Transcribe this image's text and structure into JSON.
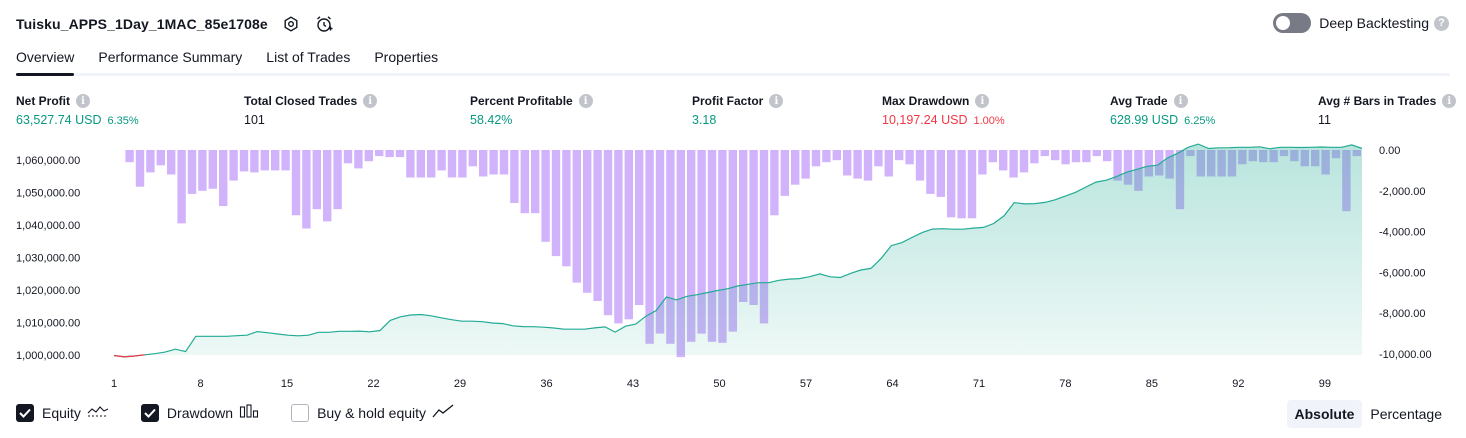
{
  "header": {
    "strategy_name": "Tuisku_APPS_1Day_1MAC_85e1708e",
    "deep_backtesting_label": "Deep Backtesting"
  },
  "tabs": [
    {
      "label": "Overview",
      "active": true
    },
    {
      "label": "Performance Summary",
      "active": false
    },
    {
      "label": "List of Trades",
      "active": false
    },
    {
      "label": "Properties",
      "active": false
    }
  ],
  "metrics": {
    "net_profit": {
      "label": "Net Profit",
      "value": "63,527.74 USD",
      "pct": "6.35%"
    },
    "total_closed_trades": {
      "label": "Total Closed Trades",
      "value": "101"
    },
    "percent_profitable": {
      "label": "Percent Profitable",
      "value": "58.42%"
    },
    "profit_factor": {
      "label": "Profit Factor",
      "value": "3.18"
    },
    "max_drawdown": {
      "label": "Max Drawdown",
      "value": "10,197.24 USD",
      "pct": "1.00%"
    },
    "avg_trade": {
      "label": "Avg Trade",
      "value": "628.99 USD",
      "pct": "6.25%"
    },
    "avg_bars": {
      "label": "Avg # Bars in Trades",
      "value": "11"
    }
  },
  "legend": {
    "equity": {
      "label": "Equity",
      "checked": true
    },
    "drawdown": {
      "label": "Drawdown",
      "checked": true
    },
    "buy_hold": {
      "label": "Buy & hold equity",
      "checked": false
    }
  },
  "modes": {
    "absolute": "Absolute",
    "percentage": "Percentage",
    "active": "absolute"
  },
  "colors": {
    "equity_line": "#22ab94",
    "equity_fill": "#22ab94",
    "equity_negative": "#f23645",
    "drawdown_bar": "#d1b3fb",
    "drawdown_bar_overlap": "#b39ddb",
    "positive": "#089981",
    "negative": "#f23645"
  },
  "chart_data": {
    "type": "area",
    "x_ticks": [
      1,
      8,
      15,
      22,
      29,
      36,
      43,
      50,
      57,
      64,
      71,
      78,
      85,
      92,
      99
    ],
    "x_range": [
      1,
      102
    ],
    "left_axis": {
      "ticks": [
        "1,060,000.00",
        "1,050,000.00",
        "1,040,000.00",
        "1,030,000.00",
        "1,020,000.00",
        "1,010,000.00",
        "1,000,000.00"
      ],
      "range": [
        1000000,
        1060000
      ]
    },
    "right_axis": {
      "ticks": [
        "0.00",
        "-2,000.00",
        "-4,000.00",
        "-6,000.00",
        "-8,000.00",
        "-10,000.00"
      ],
      "range": [
        -10000,
        0
      ]
    },
    "series": [
      {
        "name": "Equity",
        "values": [
          999840,
          999400,
          999700,
          1000050,
          1000400,
          1000900,
          1001800,
          1001050,
          1005750,
          1005750,
          1005750,
          1005750,
          1005950,
          1006100,
          1007200,
          1006850,
          1006450,
          1006100,
          1005900,
          1006100,
          1007000,
          1007000,
          1007300,
          1007300,
          1007350,
          1007150,
          1007550,
          1010650,
          1011750,
          1012300,
          1012450,
          1012050,
          1011450,
          1010850,
          1010400,
          1010400,
          1010250,
          1009850,
          1009650,
          1009000,
          1008750,
          1008700,
          1008550,
          1008300,
          1007950,
          1007950,
          1007950,
          1008350,
          1008650,
          1007050,
          1008850,
          1009500,
          1011950,
          1013700,
          1017850,
          1016950,
          1018050,
          1018550,
          1019200,
          1019850,
          1020400,
          1021250,
          1021750,
          1022250,
          1022250,
          1023000,
          1023350,
          1023500,
          1024100,
          1024950,
          1024050,
          1023850,
          1025100,
          1026150,
          1026650,
          1029750,
          1033650,
          1034550,
          1036150,
          1037650,
          1038750,
          1038850,
          1038700,
          1038700,
          1039050,
          1039250,
          1040450,
          1042800,
          1046900,
          1046500,
          1046600,
          1046950,
          1047750,
          1048900,
          1050050,
          1051650,
          1053200,
          1053800,
          1054900,
          1056250,
          1057150,
          1058050,
          1058400,
          1060650,
          1062100,
          1063900,
          1064900,
          1063550,
          1063750,
          1063800,
          1063900,
          1063900,
          1064050,
          1063450,
          1063900,
          1063900,
          1063850,
          1063900,
          1064000,
          1063900,
          1063900,
          1064650,
          1063550
        ]
      },
      {
        "name": "Drawdown",
        "values": [
          0,
          -600,
          -1800,
          -1100,
          -750,
          -1200,
          -3600,
          -2150,
          -2000,
          -1900,
          -2750,
          -1500,
          -1050,
          -1100,
          -1000,
          -1000,
          -1000,
          -3200,
          -3850,
          -2900,
          -3500,
          -2900,
          -650,
          -900,
          -550,
          -300,
          -350,
          -350,
          -1350,
          -1350,
          -1350,
          -1000,
          -1350,
          -1350,
          -800,
          -1300,
          -1200,
          -1200,
          -2600,
          -3100,
          -3100,
          -4500,
          -5200,
          -5700,
          -6500,
          -7000,
          -7400,
          -8100,
          -8500,
          -8300,
          -7600,
          -9500,
          -9000,
          -9500,
          -10150,
          -9400,
          -9000,
          -9400,
          -9450,
          -8900,
          -7450,
          -7600,
          -8500,
          -3200,
          -2250,
          -1700,
          -1400,
          -800,
          -600,
          -500,
          -1250,
          -1400,
          -1500,
          -800,
          -1300,
          -500,
          -700,
          -1500,
          -2150,
          -2300,
          -3300,
          -3350,
          -3350,
          -1200,
          -600,
          -1000,
          -1350,
          -1100,
          -650,
          -300,
          -500,
          -700,
          -600,
          -600,
          -300,
          -550,
          -1500,
          -1700,
          -2000,
          -1300,
          -1250,
          -1400,
          -2900,
          -300,
          -1300,
          -1300,
          -1300,
          -1300,
          -700,
          -550,
          -600,
          -600,
          -300,
          -550,
          -800,
          -800,
          -1200,
          -400,
          -3000,
          -300
        ]
      }
    ],
    "grid": false,
    "legend_placement": "bottom-left"
  }
}
